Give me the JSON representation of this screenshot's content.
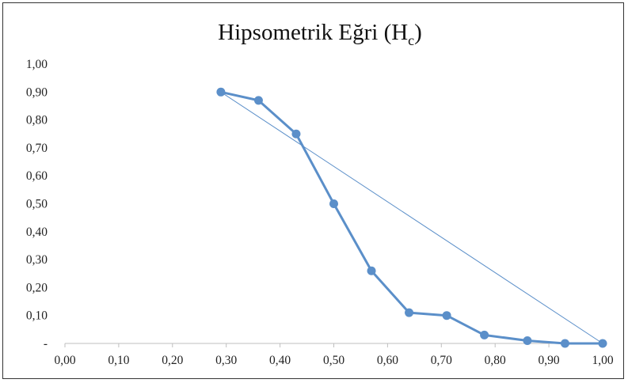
{
  "chart_data": {
    "type": "scatter",
    "title": "Hipsometrik Eğri (H",
    "title_subscript": "c",
    "title_suffix": ")",
    "xlabel": "",
    "ylabel": "",
    "xlim": [
      0,
      1
    ],
    "ylim": [
      0,
      1
    ],
    "x_ticks": [
      0,
      0.1,
      0.2,
      0.3,
      0.4,
      0.5,
      0.6,
      0.7,
      0.8,
      0.9,
      1.0
    ],
    "x_tick_labels": [
      "0,00",
      "0,10",
      "0,20",
      "0,30",
      "0,40",
      "0,50",
      "0,60",
      "0,70",
      "0,80",
      "0,90",
      "1,00"
    ],
    "y_ticks": [
      0,
      0.1,
      0.2,
      0.3,
      0.4,
      0.5,
      0.6,
      0.7,
      0.8,
      0.9,
      1.0
    ],
    "y_tick_labels": [
      "-",
      "0,10",
      "0,20",
      "0,30",
      "0,40",
      "0,50",
      "0,60",
      "0,70",
      "0,80",
      "0,90",
      "1,00"
    ],
    "grid": false,
    "legend": "none",
    "series": [
      {
        "style": "line-markers",
        "color": "#5b8fc9",
        "points": [
          [
            0.29,
            0.9
          ],
          [
            0.36,
            0.87
          ],
          [
            0.43,
            0.75
          ],
          [
            0.5,
            0.5
          ],
          [
            0.57,
            0.26
          ],
          [
            0.64,
            0.11
          ],
          [
            0.71,
            0.1
          ],
          [
            0.78,
            0.03
          ],
          [
            0.86,
            0.01
          ],
          [
            0.93,
            0.0
          ],
          [
            1.0,
            0.0
          ]
        ]
      },
      {
        "style": "thin-line",
        "color": "#5b8fc9",
        "points": [
          [
            0.29,
            0.9
          ],
          [
            1.0,
            0.0
          ]
        ]
      }
    ]
  }
}
